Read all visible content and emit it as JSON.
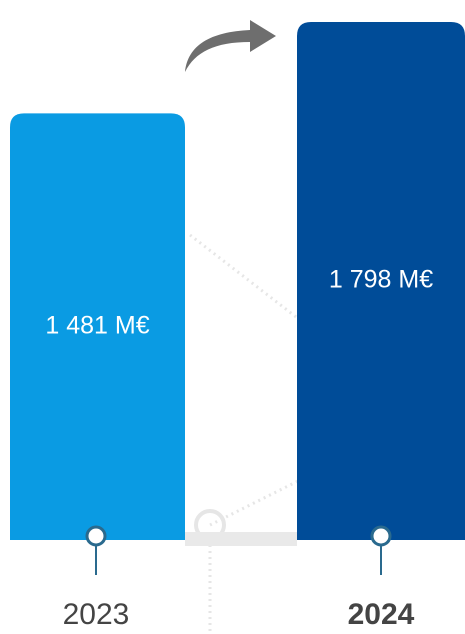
{
  "chart_data": {
    "type": "bar",
    "categories": [
      "2023",
      "2024"
    ],
    "values": [
      1481,
      1798
    ],
    "value_labels": [
      "1 481 M€",
      "1 798 M€"
    ],
    "colors": [
      "#0a9be3",
      "#004c98"
    ]
  }
}
